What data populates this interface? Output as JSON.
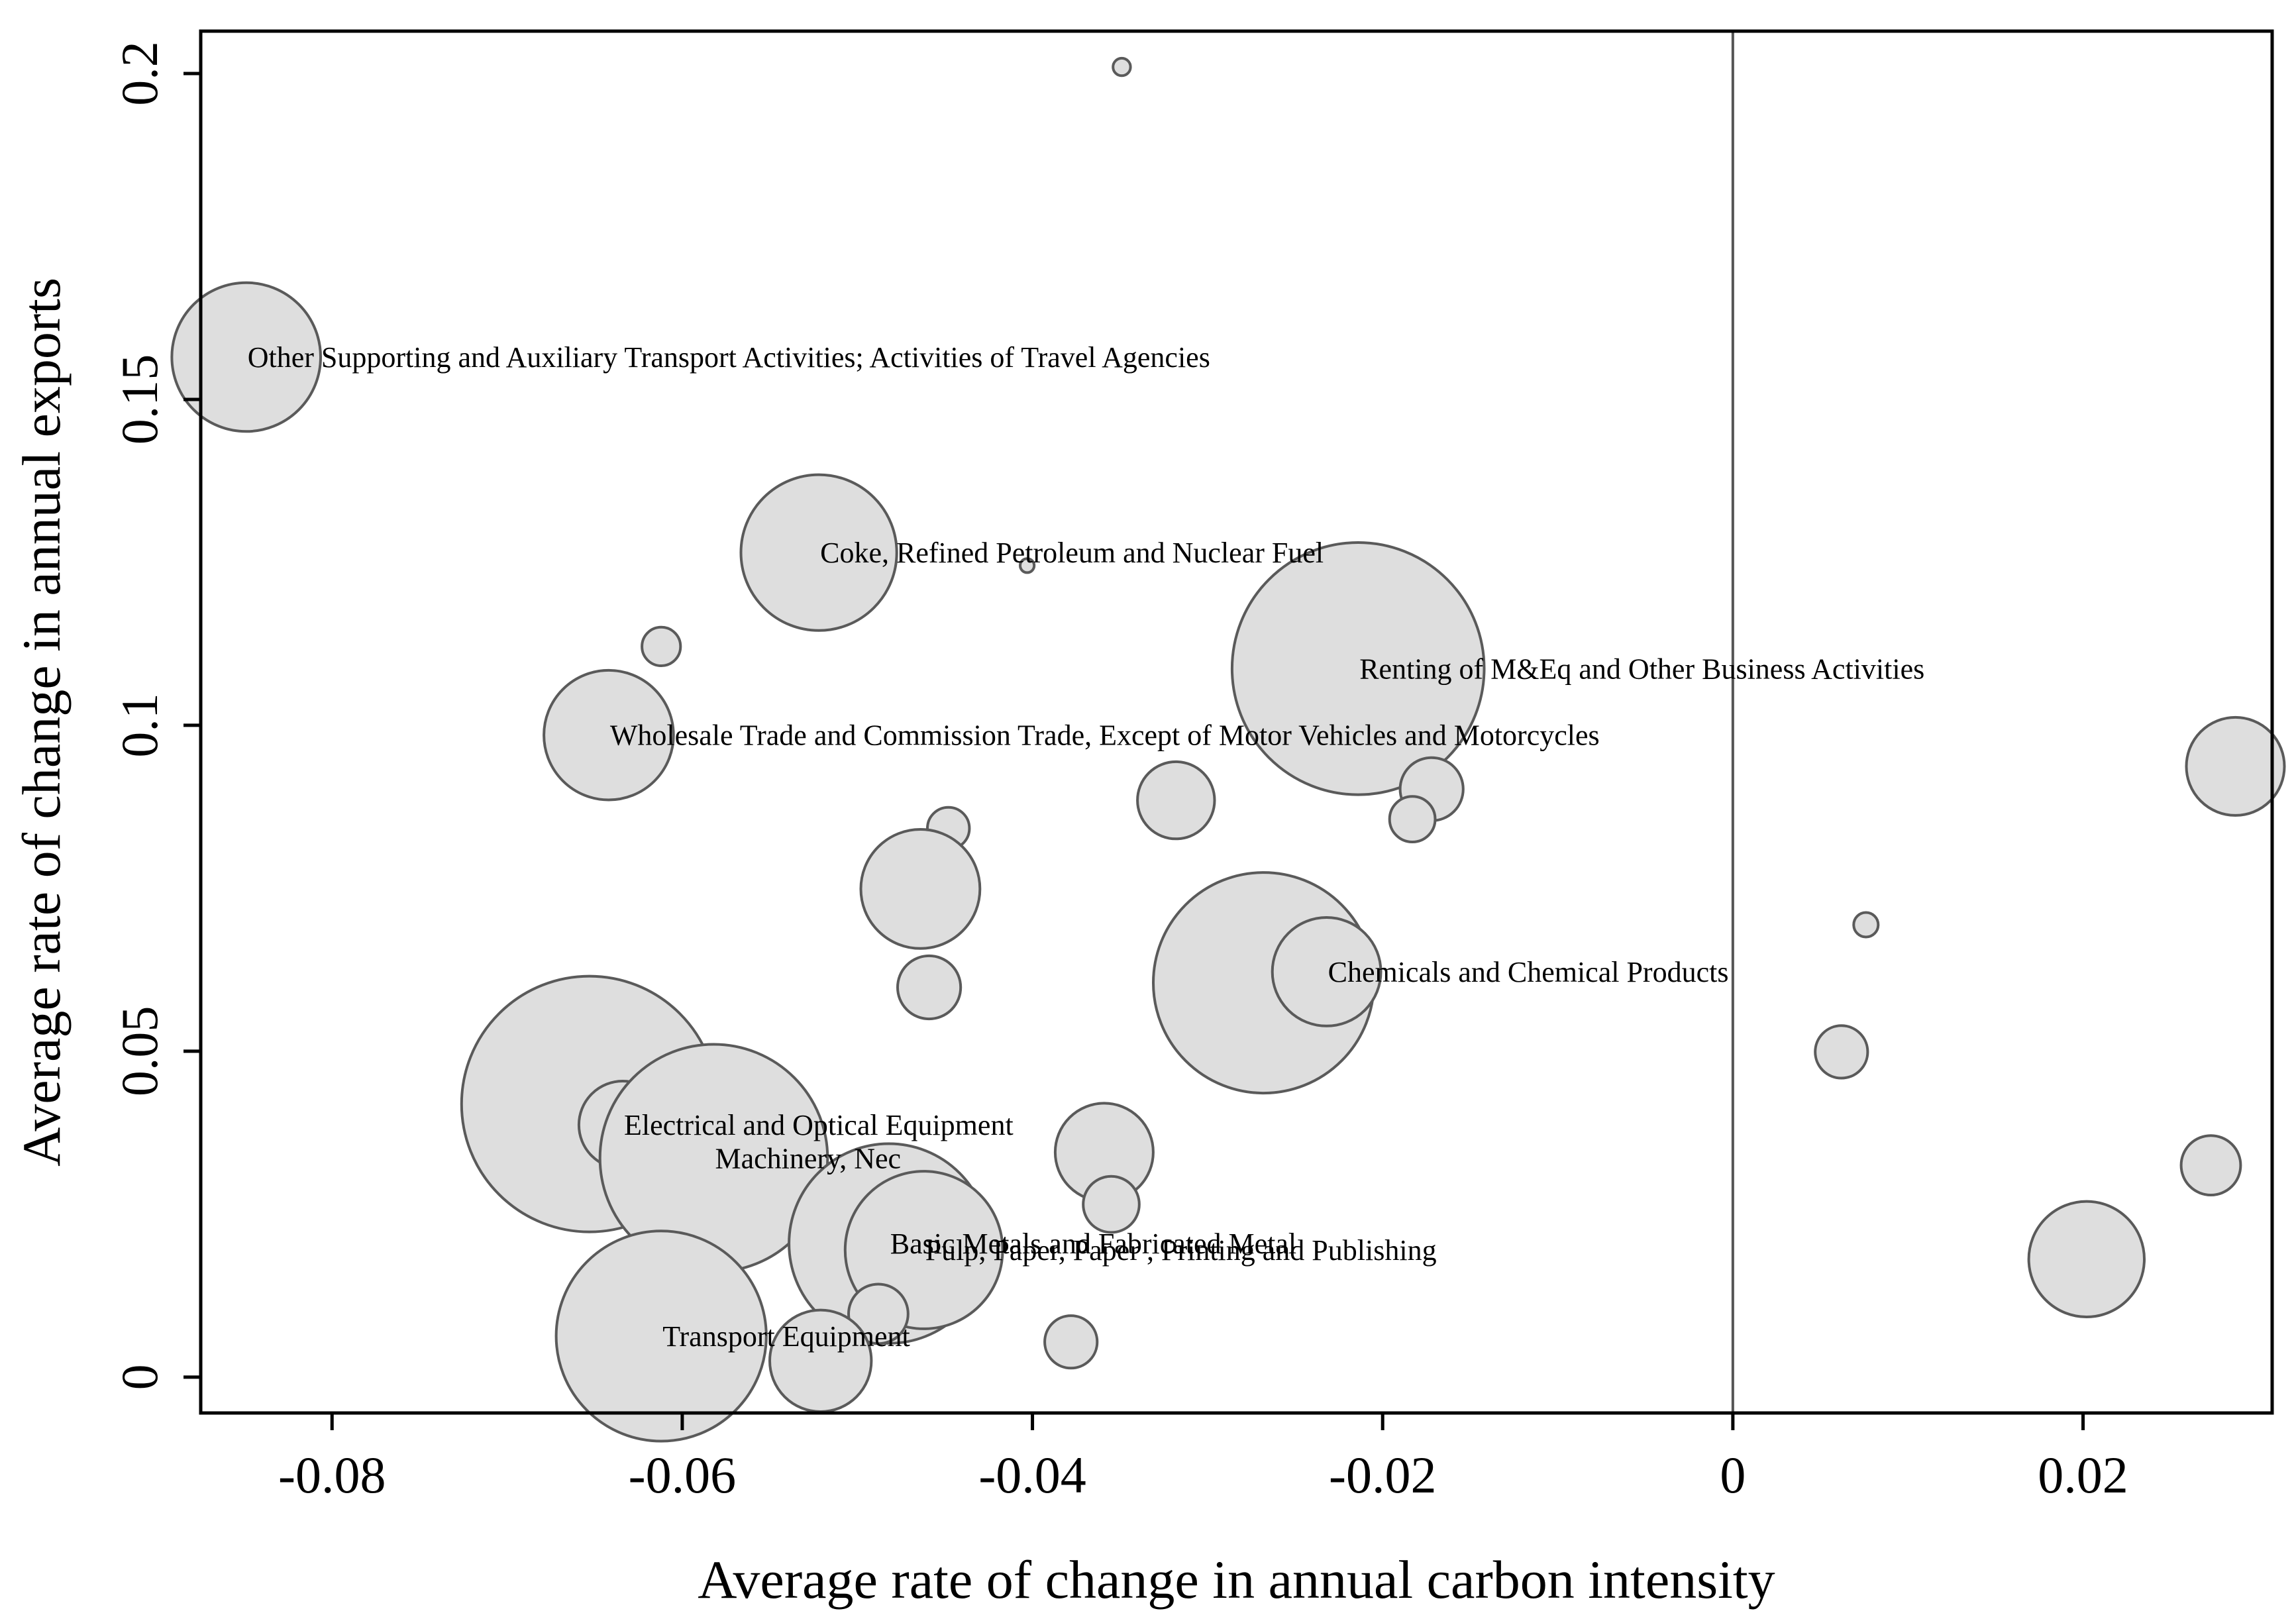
{
  "chart_data": {
    "type": "scatter",
    "subtype": "bubble",
    "title": "",
    "xlabel": "Average rate of change in annual carbon intensity",
    "ylabel": "Average rate of change in annual exports",
    "xlim": [
      -0.0875,
      0.0308
    ],
    "ylim": [
      -0.0055,
      0.2065
    ],
    "xticks": [
      {
        "value": -0.08,
        "label": "-0.08"
      },
      {
        "value": -0.06,
        "label": "-0.06"
      },
      {
        "value": -0.04,
        "label": "-0.04"
      },
      {
        "value": -0.02,
        "label": "-0.02"
      },
      {
        "value": 0,
        "label": "0"
      },
      {
        "value": 0.02,
        "label": "0.02"
      }
    ],
    "yticks": [
      {
        "value": 0,
        "label": "0"
      },
      {
        "value": 0.05,
        "label": "0.05"
      },
      {
        "value": 0.1,
        "label": "0.1"
      },
      {
        "value": 0.15,
        "label": "0.15"
      },
      {
        "value": 0.2,
        "label": "0.2"
      }
    ],
    "vline_x": 0,
    "size_unit": "relative bubble radius (x-axis data units)",
    "points": [
      {
        "x": -0.0849,
        "y": 0.1565,
        "r": 0.00425,
        "label": "Other Supporting and Auxiliary Transport Activities; Activities of Travel Agencies"
      },
      {
        "x": -0.0349,
        "y": 0.201,
        "r": 0.0005,
        "label": ""
      },
      {
        "x": -0.0522,
        "y": 0.1265,
        "r": 0.00445,
        "label": "Coke, Refined Petroleum and Nuclear Fuel"
      },
      {
        "x": -0.0403,
        "y": 0.1245,
        "r": 0.0004,
        "label": ""
      },
      {
        "x": -0.0612,
        "y": 0.1121,
        "r": 0.0011,
        "label": ""
      },
      {
        "x": -0.0642,
        "y": 0.0985,
        "r": 0.0037,
        "label": "Wholesale Trade and Commission Trade, Except of Motor Vehicles and Motorcycles"
      },
      {
        "x": -0.0214,
        "y": 0.1087,
        "r": 0.0072,
        "label": "Renting of M&Eq and Other Business Activities"
      },
      {
        "x": -0.0172,
        "y": 0.0902,
        "r": 0.0018,
        "label": ""
      },
      {
        "x": -0.0183,
        "y": 0.0856,
        "r": 0.0013,
        "label": ""
      },
      {
        "x": -0.0318,
        "y": 0.0885,
        "r": 0.0022,
        "label": ""
      },
      {
        "x": -0.0448,
        "y": 0.0842,
        "r": 0.0012,
        "label": ""
      },
      {
        "x": -0.0464,
        "y": 0.0749,
        "r": 0.0034,
        "label": ""
      },
      {
        "x": -0.0459,
        "y": 0.0598,
        "r": 0.0018,
        "label": ""
      },
      {
        "x": -0.0268,
        "y": 0.0605,
        "r": 0.0063,
        "label": ""
      },
      {
        "x": -0.0232,
        "y": 0.0622,
        "r": 0.0031,
        "label": "Chemicals and Chemical Products"
      },
      {
        "x": 0.0287,
        "y": 0.0937,
        "r": 0.0028,
        "label": ""
      },
      {
        "x": 0.0076,
        "y": 0.0694,
        "r": 0.0007,
        "label": ""
      },
      {
        "x": 0.0062,
        "y": 0.0499,
        "r": 0.0015,
        "label": ""
      },
      {
        "x": 0.0273,
        "y": 0.0325,
        "r": 0.0017,
        "label": ""
      },
      {
        "x": 0.0202,
        "y": 0.0181,
        "r": 0.0033,
        "label": ""
      },
      {
        "x": -0.0653,
        "y": 0.0419,
        "r": 0.0073,
        "label": ""
      },
      {
        "x": -0.0634,
        "y": 0.0387,
        "r": 0.0025,
        "label": "Electrical and Optical Equipment"
      },
      {
        "x": -0.0582,
        "y": 0.0336,
        "r": 0.0065,
        "label": "Machinery, Nec"
      },
      {
        "x": -0.0359,
        "y": 0.0345,
        "r": 0.0028,
        "label": ""
      },
      {
        "x": -0.0355,
        "y": 0.0265,
        "r": 0.0016,
        "label": ""
      },
      {
        "x": -0.0482,
        "y": 0.0205,
        "r": 0.0057,
        "label": "Basic Metals and Fabricated Metal"
      },
      {
        "x": -0.0462,
        "y": 0.0195,
        "r": 0.0045,
        "label": "Pulp, Paper, Paper , Printing and Publishing"
      },
      {
        "x": -0.0612,
        "y": 0.0063,
        "r": 0.006,
        "label": "Transport Equipment"
      },
      {
        "x": -0.0488,
        "y": 0.0097,
        "r": 0.0017,
        "label": ""
      },
      {
        "x": -0.0378,
        "y": 0.0054,
        "r": 0.0015,
        "label": ""
      },
      {
        "x": -0.0521,
        "y": 0.0025,
        "r": 0.0029,
        "label": ""
      }
    ]
  }
}
